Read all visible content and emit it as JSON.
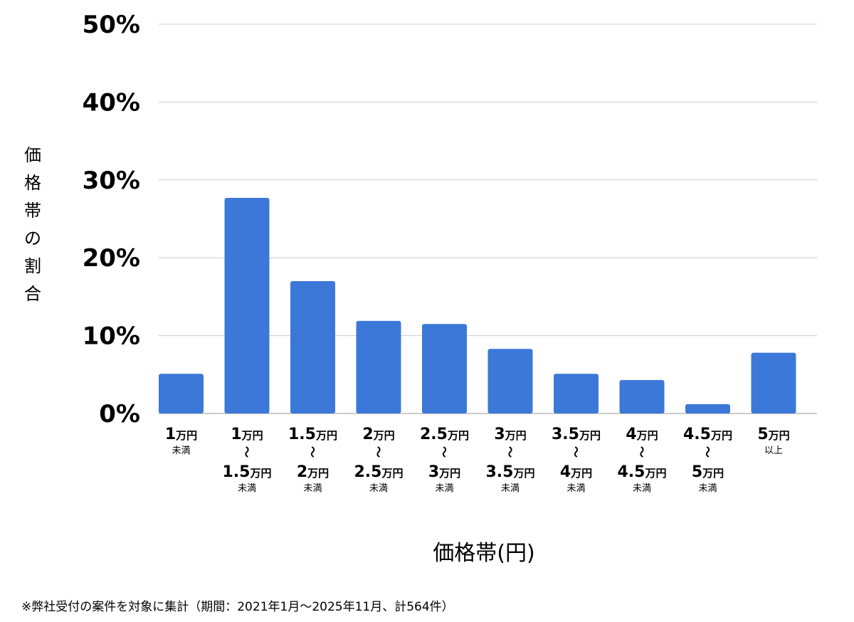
{
  "chart_data": {
    "type": "bar",
    "ylabel": "価格帯の割合",
    "xlabel": "価格帯(円)",
    "ylim": [
      0,
      50
    ],
    "yticks": [
      0,
      10,
      20,
      30,
      40,
      50
    ],
    "ytick_labels": [
      "0%",
      "10%",
      "20%",
      "30%",
      "40%",
      "50%"
    ],
    "grid": true,
    "categories": [
      {
        "lines": [
          "1万円",
          "未満"
        ]
      },
      {
        "lines": [
          "1万円",
          "〜",
          "1.5万円",
          "未満"
        ]
      },
      {
        "lines": [
          "1.5万円",
          "〜",
          "2万円",
          "未満"
        ]
      },
      {
        "lines": [
          "2万円",
          "〜",
          "2.5万円",
          "未満"
        ]
      },
      {
        "lines": [
          "2.5万円",
          "〜",
          "3万円",
          "未満"
        ]
      },
      {
        "lines": [
          "3万円",
          "〜",
          "3.5万円",
          "未満"
        ]
      },
      {
        "lines": [
          "3.5万円",
          "〜",
          "4万円",
          "未満"
        ]
      },
      {
        "lines": [
          "4万円",
          "〜",
          "4.5万円",
          "未満"
        ]
      },
      {
        "lines": [
          "4.5万円",
          "〜",
          "5万円",
          "未満"
        ]
      },
      {
        "lines": [
          "5万円",
          "以上"
        ]
      }
    ],
    "values": [
      5.1,
      27.7,
      17.0,
      11.9,
      11.5,
      8.3,
      5.1,
      4.3,
      1.2,
      7.8
    ],
    "bar_color": "#3c78d8",
    "grid_color": "#cccccc",
    "footnote": "※弊社受付の案件を対象に集計（期間：2021年1月〜2025年11月、計564件）"
  }
}
